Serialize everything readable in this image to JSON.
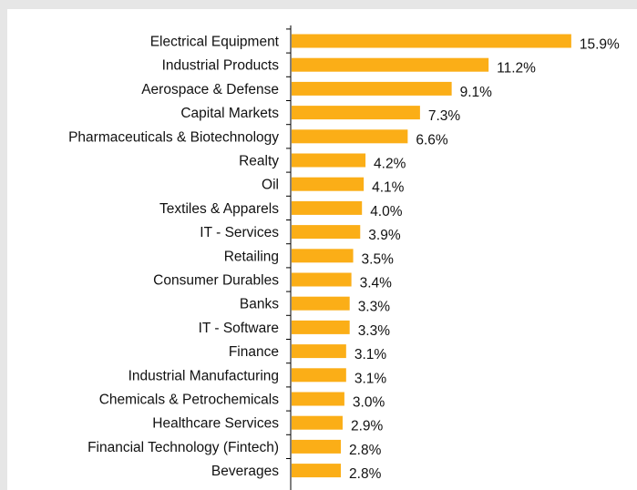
{
  "chart_data": {
    "type": "bar",
    "orientation": "horizontal",
    "bar_color": "#FBAE17",
    "value_suffix": "%",
    "categories": [
      "Electrical Equipment",
      "Industrial Products",
      "Aerospace & Defense",
      "Capital Markets",
      "Pharmaceuticals & Biotechnology",
      "Realty",
      "Oil",
      "Textiles & Apparels",
      "IT - Services",
      "Retailing",
      "Consumer Durables",
      "Banks",
      "IT - Software",
      "Finance",
      "Industrial Manufacturing",
      "Chemicals & Petrochemicals",
      "Healthcare Services",
      "Financial Technology (Fintech)",
      "Beverages"
    ],
    "values": [
      15.9,
      11.2,
      9.1,
      7.3,
      6.6,
      4.2,
      4.1,
      4.0,
      3.9,
      3.5,
      3.4,
      3.3,
      3.3,
      3.1,
      3.1,
      3.0,
      2.9,
      2.8,
      2.8
    ],
    "value_labels": [
      "15.9%",
      "11.2%",
      "9.1%",
      "7.3%",
      "6.6%",
      "4.2%",
      "4.1%",
      "4.0%",
      "3.9%",
      "3.5%",
      "3.4%",
      "3.3%",
      "3.3%",
      "3.1%",
      "3.1%",
      "3.0%",
      "2.9%",
      "2.8%",
      "2.8%"
    ],
    "xlim": [
      0,
      17
    ],
    "grid": false,
    "legend": "none"
  }
}
